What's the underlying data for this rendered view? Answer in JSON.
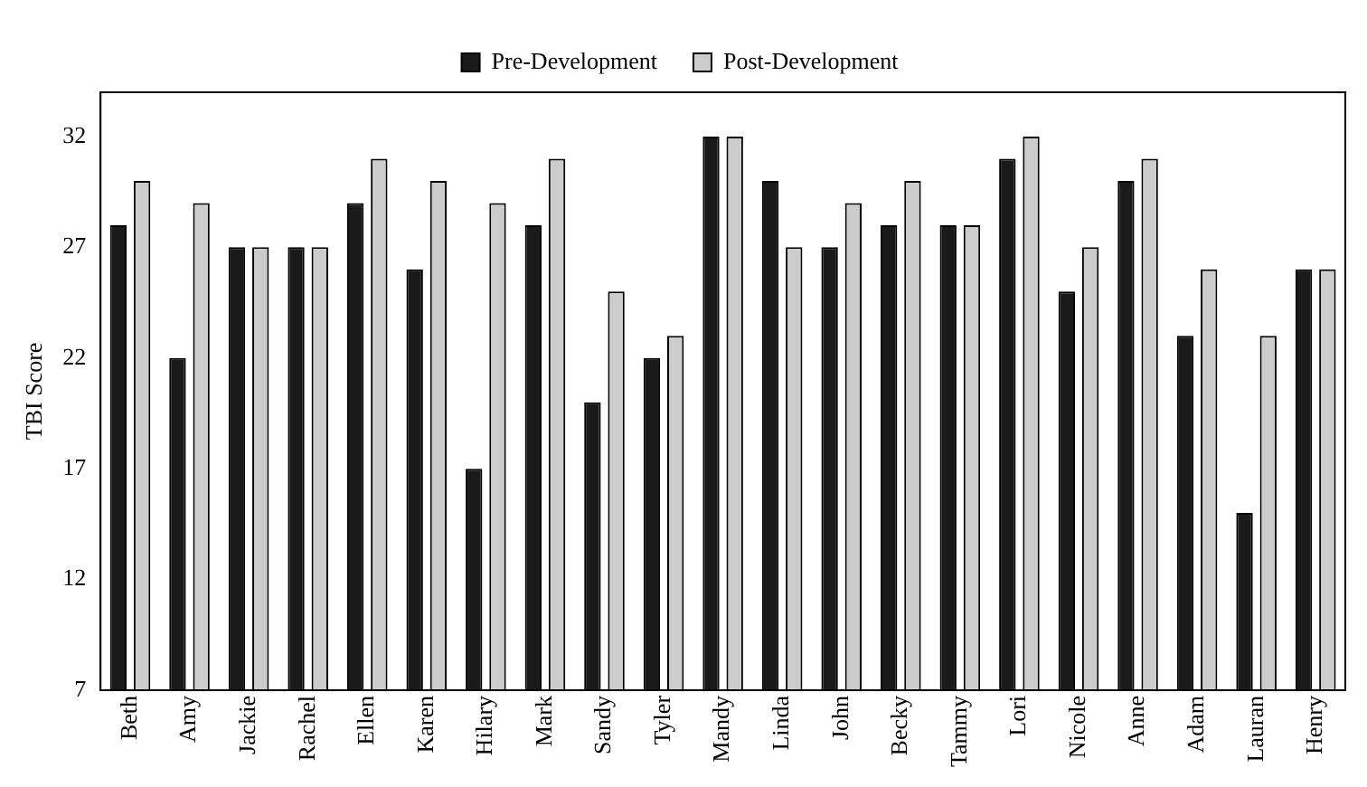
{
  "chart_data": {
    "type": "bar",
    "ylabel": "TBI Score",
    "categories": [
      "Beth",
      "Amy",
      "Jackie",
      "Rachel",
      "Ellen",
      "Karen",
      "Hilary",
      "Mark",
      "Sandy",
      "Tyler",
      "Mandy",
      "Linda",
      "John",
      "Becky",
      "Tammy",
      "Lori",
      "Nicole",
      "Anne",
      "Adam",
      "Lauran",
      "Henry"
    ],
    "series": [
      {
        "name": "Pre-Development",
        "color": "#1a1a1a",
        "values": [
          28,
          22,
          27,
          27,
          29,
          26,
          17,
          28,
          20,
          22,
          32,
          30,
          27,
          28,
          28,
          31,
          25,
          30,
          23,
          15,
          26
        ]
      },
      {
        "name": "Post-Development",
        "color": "#cccccc",
        "values": [
          30,
          29,
          27,
          27,
          31,
          30,
          29,
          31,
          25,
          23,
          32,
          27,
          29,
          30,
          28,
          32,
          27,
          31,
          26,
          23,
          26
        ]
      }
    ],
    "ylim": [
      7,
      34
    ],
    "yticks": [
      7,
      12,
      17,
      22,
      27,
      32
    ],
    "grid": false,
    "legend": "top"
  }
}
